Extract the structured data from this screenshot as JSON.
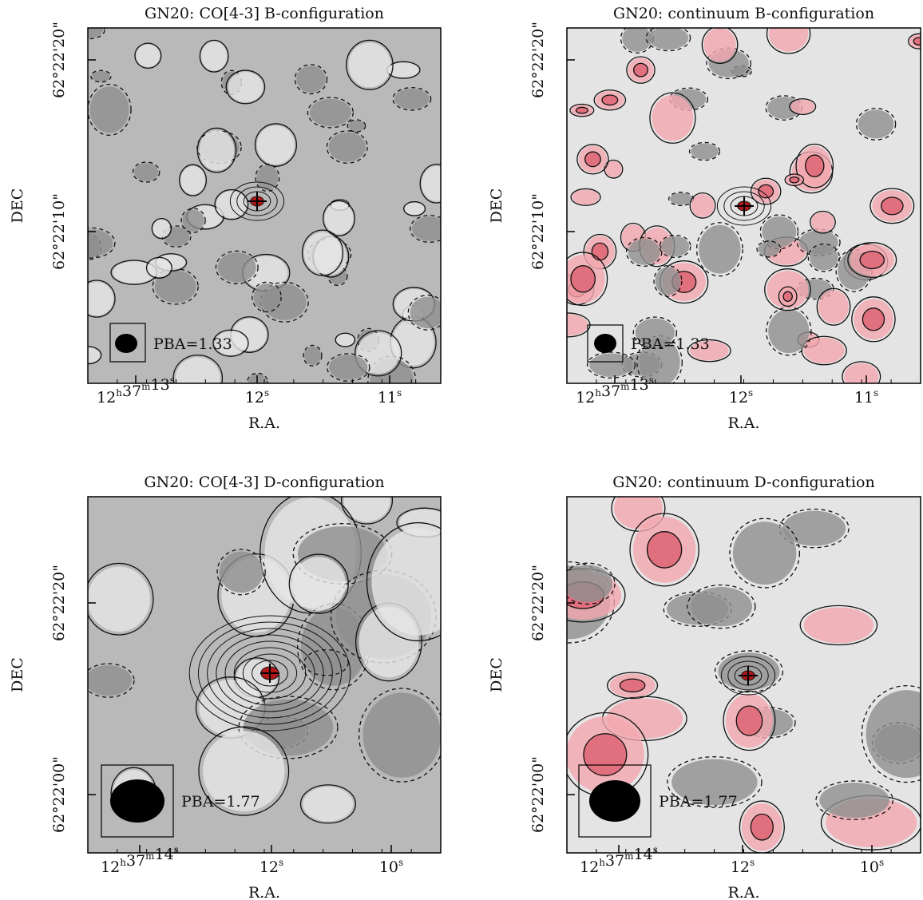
{
  "panels": [
    {
      "title": "GN20: CO[4-3] B-configuration",
      "xticks": [
        [
          [
            "12",
            "h"
          ],
          [
            "37",
            "m"
          ],
          [
            "13",
            "s"
          ]
        ],
        [
          [
            "12",
            "s"
          ]
        ],
        [
          [
            "11",
            "s"
          ]
        ]
      ],
      "yticks": [
        "62°22'20\"",
        "62°22'10\""
      ],
      "xlabel": "R.A.",
      "ylabel": "DEC",
      "annotation": "PBA=1.33"
    },
    {
      "title": "GN20: continuum B-configuration",
      "xticks": [
        [
          [
            "12",
            "h"
          ],
          [
            "37",
            "m"
          ],
          [
            "13",
            "s"
          ]
        ],
        [
          [
            "12",
            "s"
          ]
        ],
        [
          [
            "11",
            "s"
          ]
        ]
      ],
      "yticks": [
        "62°22'20\"",
        "62°22'10\""
      ],
      "xlabel": "R.A.",
      "ylabel": "DEC",
      "annotation": "PBA=1.33"
    },
    {
      "title": "GN20: CO[4-3] D-configuration",
      "xticks": [
        [
          [
            "12",
            "h"
          ],
          [
            "37",
            "m"
          ],
          [
            "14",
            "s"
          ]
        ],
        [
          [
            "12",
            "s"
          ]
        ],
        [
          [
            "10",
            "s"
          ]
        ]
      ],
      "yticks": [
        "62°22'20\"",
        "62°22'00\""
      ],
      "xlabel": "R.A.",
      "ylabel": "DEC",
      "annotation": "PBA=1.77"
    },
    {
      "title": "GN20: continuum D-configuration",
      "xticks": [
        [
          [
            "12",
            "h"
          ],
          [
            "37",
            "m"
          ],
          [
            "14",
            "s"
          ]
        ],
        [
          [
            "12",
            "s"
          ]
        ],
        [
          [
            "10",
            "s"
          ]
        ]
      ],
      "yticks": [
        "62°22'20\"",
        "62°22'00\""
      ],
      "xlabel": "R.A.",
      "ylabel": "DEC",
      "annotation": "PBA=1.77"
    }
  ]
}
